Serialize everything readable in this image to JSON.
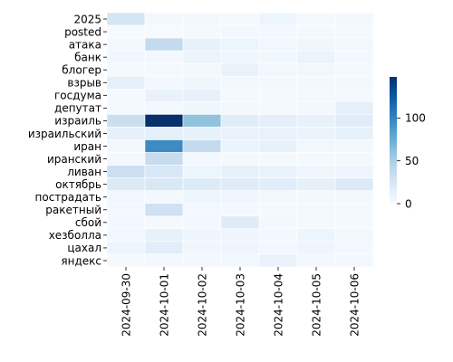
{
  "chart_data": {
    "type": "heatmap",
    "title": "",
    "xlabel": "",
    "ylabel": "",
    "x": [
      "2024-09-30",
      "2024-10-01",
      "2024-10-02",
      "2024-10-03",
      "2024-10-04",
      "2024-10-05",
      "2024-10-06"
    ],
    "y": [
      "2025",
      "posted",
      "атака",
      "банк",
      "блогер",
      "взрыв",
      "госдума",
      "депутат",
      "израиль",
      "израильский",
      "иран",
      "иранский",
      "ливан",
      "октябрь",
      "пострадать",
      "ракетный",
      "сбой",
      "хезболла",
      "цахал",
      "яндекс"
    ],
    "values": [
      [
        26,
        4,
        3,
        2,
        8,
        2,
        3
      ],
      [
        1,
        1,
        2,
        3,
        3,
        2,
        2
      ],
      [
        4,
        38,
        12,
        8,
        5,
        6,
        5
      ],
      [
        5,
        3,
        9,
        6,
        5,
        9,
        3
      ],
      [
        2,
        2,
        4,
        10,
        5,
        5,
        2
      ],
      [
        14,
        3,
        6,
        4,
        3,
        3,
        4
      ],
      [
        2,
        10,
        12,
        2,
        2,
        2,
        2
      ],
      [
        2,
        3,
        6,
        4,
        2,
        3,
        14
      ],
      [
        34,
        148,
        60,
        17,
        14,
        12,
        17
      ],
      [
        13,
        13,
        12,
        10,
        10,
        9,
        12
      ],
      [
        3,
        96,
        38,
        9,
        12,
        5,
        4
      ],
      [
        3,
        36,
        4,
        2,
        2,
        2,
        2
      ],
      [
        32,
        23,
        8,
        12,
        10,
        6,
        7
      ],
      [
        20,
        22,
        19,
        18,
        16,
        13,
        20
      ],
      [
        5,
        4,
        8,
        6,
        4,
        3,
        4
      ],
      [
        3,
        30,
        4,
        2,
        2,
        2,
        2
      ],
      [
        3,
        2,
        3,
        18,
        3,
        2,
        2
      ],
      [
        5,
        12,
        7,
        7,
        4,
        8,
        5
      ],
      [
        8,
        16,
        6,
        7,
        4,
        7,
        4
      ],
      [
        2,
        3,
        4,
        5,
        10,
        3,
        3
      ]
    ],
    "vmin": 0,
    "vmax": 148,
    "colormap": "Blues",
    "colorbar_ticks": [
      0,
      50,
      100
    ],
    "grid": false,
    "cell_lines": true,
    "cell_line_color": "#ffffff",
    "legend": "colorbar-right"
  }
}
